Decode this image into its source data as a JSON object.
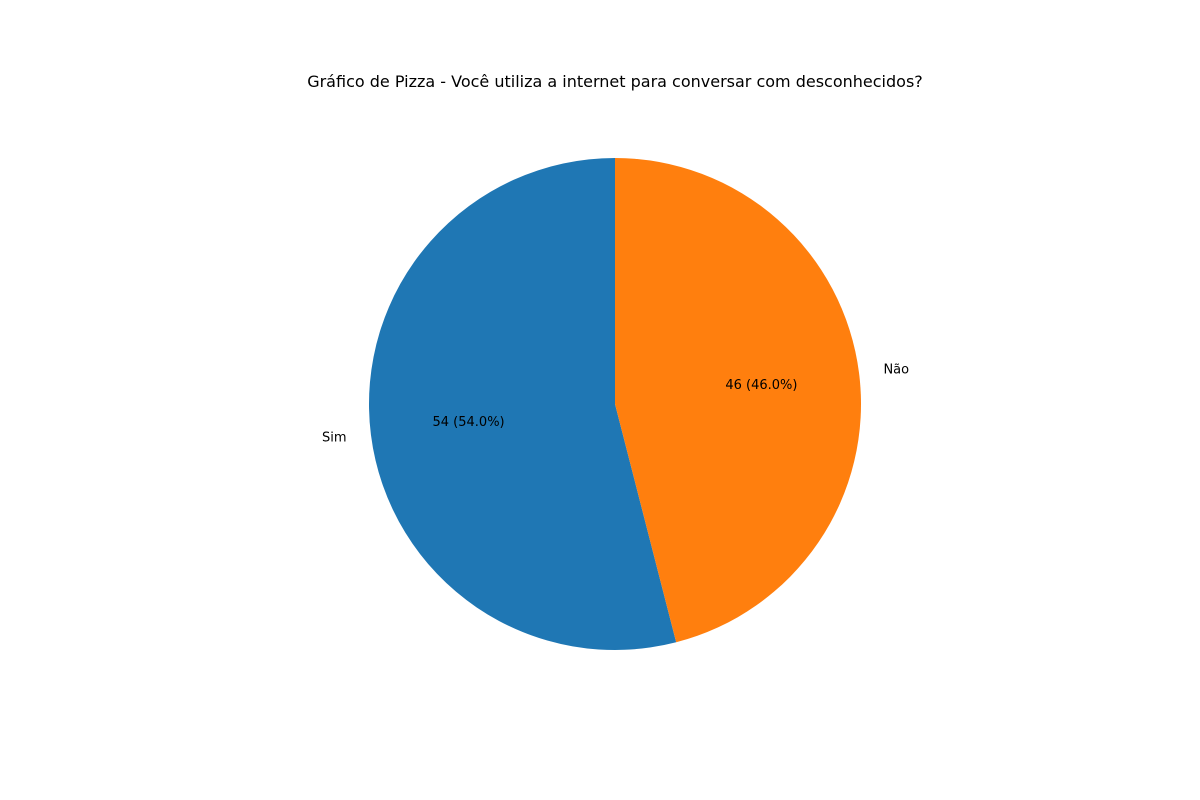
{
  "chart_data": {
    "type": "pie",
    "title": "Gráfico de Pizza - Você utiliza a internet para conversar com desconhecidos?",
    "categories": [
      "Sim",
      "Não"
    ],
    "values": [
      54,
      46
    ],
    "percent_labels": [
      "54 (54.0%)",
      "46 (46.0%)"
    ],
    "colors": [
      "#1f77b4",
      "#ff7f0e"
    ],
    "start_angle_deg": 90,
    "direction": "counterclockwise",
    "legend": "none"
  }
}
